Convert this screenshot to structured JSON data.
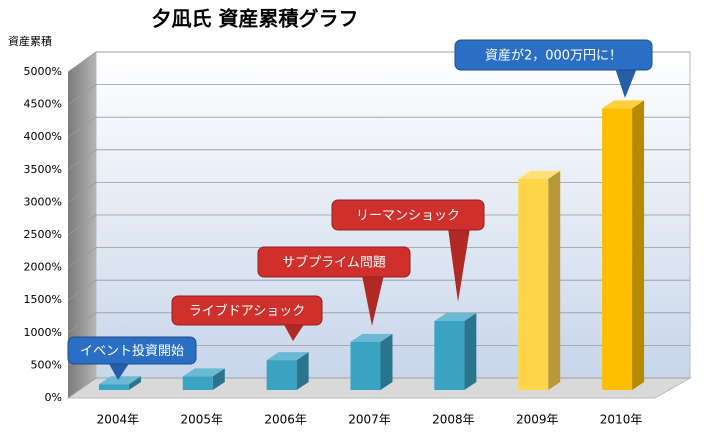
{
  "chart_data": {
    "type": "bar3d",
    "title": "夕凪氏 資産累積グラフ",
    "y_label": "資産累積",
    "categories": [
      "2004年",
      "2005年",
      "2006年",
      "2007年",
      "2008年",
      "2009年",
      "2010年"
    ],
    "values": [
      150,
      270,
      520,
      800,
      1120,
      3300,
      4380
    ],
    "colors": [
      "#3aa3c4",
      "#3aa3c4",
      "#3aa3c4",
      "#3aa3c4",
      "#3aa3c4",
      "#ffd54a",
      "#ffbf00"
    ],
    "ylim": [
      0,
      5000
    ],
    "yticks": [
      {
        "value": 0,
        "label": "0%"
      },
      {
        "value": 500,
        "label": "500%"
      },
      {
        "value": 1000,
        "label": "1000%"
      },
      {
        "value": 1500,
        "label": "1500%"
      },
      {
        "value": 2000,
        "label": "2000%"
      },
      {
        "value": 2500,
        "label": "2500%"
      },
      {
        "value": 3000,
        "label": "3000%"
      },
      {
        "value": 3500,
        "label": "3500%"
      },
      {
        "value": 4000,
        "label": "4000%"
      },
      {
        "value": 4500,
        "label": "4500%"
      },
      {
        "value": 5000,
        "label": "5000%"
      }
    ],
    "grid": true,
    "annotations": [
      {
        "text": "イベント投資開始",
        "color": "#2b6fc4"
      },
      {
        "text": "ライブドアショック",
        "color": "#d0302c"
      },
      {
        "text": "サブプライム問題",
        "color": "#d0302c"
      },
      {
        "text": "リーマンショック",
        "color": "#d0302c"
      },
      {
        "text": "資産が2，000万円に！",
        "color": "#2b6fc4"
      }
    ]
  }
}
